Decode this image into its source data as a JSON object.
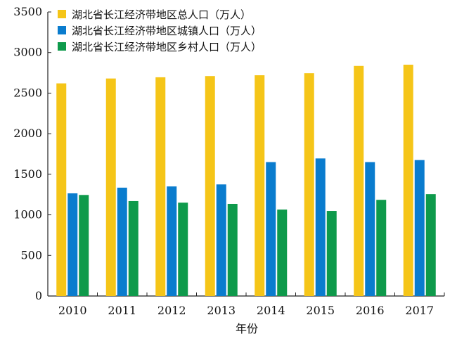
{
  "chart_data": {
    "type": "bar",
    "title": "",
    "xlabel": "年份",
    "ylabel": "",
    "ylim": [
      0,
      3500
    ],
    "yticks": [
      0,
      500,
      1000,
      1500,
      2000,
      2500,
      3000,
      3500
    ],
    "categories": [
      "2010",
      "2011",
      "2012",
      "2013",
      "2014",
      "2015",
      "2016",
      "2017"
    ],
    "series": [
      {
        "name": "湖北省长江经济带地区总人口（万人）",
        "color": "#F5C518",
        "values": [
          2620,
          2680,
          2695,
          2710,
          2720,
          2745,
          2835,
          2850
        ]
      },
      {
        "name": "湖北省长江经济带地区城镇人口（万人）",
        "color": "#0A7CCE",
        "values": [
          1265,
          1335,
          1350,
          1375,
          1650,
          1695,
          1650,
          1675
        ]
      },
      {
        "name": "湖北省长江经济带地区乡村人口（万人）",
        "color": "#0E9A4B",
        "values": [
          1245,
          1170,
          1150,
          1135,
          1065,
          1048,
          1185,
          1255
        ]
      }
    ],
    "grid": false,
    "legend_position": "top-left"
  }
}
